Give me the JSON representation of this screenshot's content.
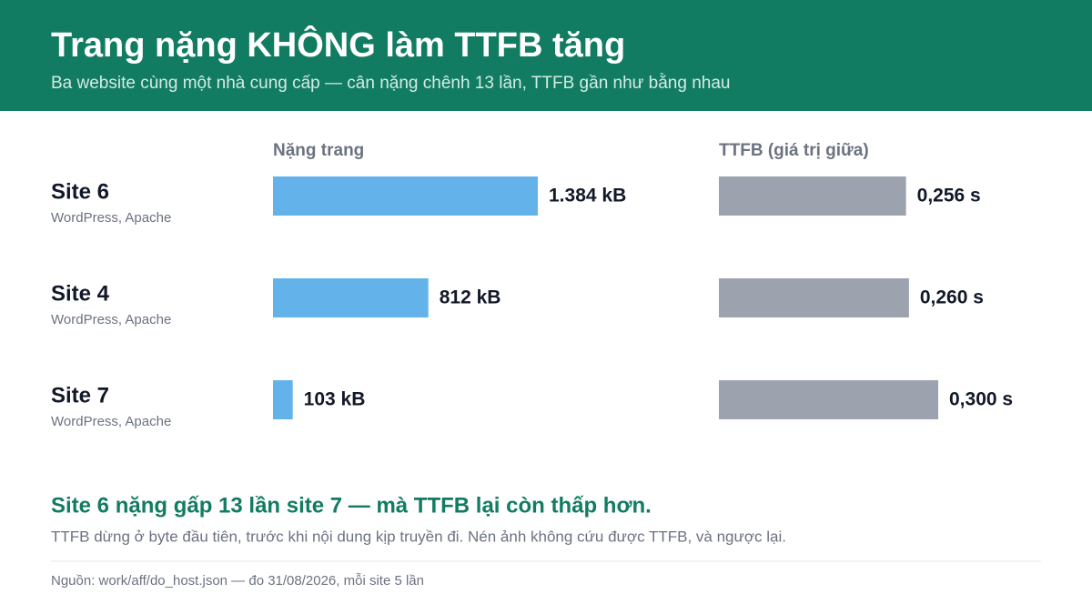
{
  "header": {
    "title": "Trang nặng KHÔNG làm TTFB tăng",
    "subtitle": "Ba website cùng một nhà cung cấp — cân nặng chênh 13 lần, TTFB gần như bằng nhau"
  },
  "rows": [
    {
      "stack": "WordPress, Apache"
    },
    {
      "stack": "WordPress, Apache"
    },
    {
      "stack": "WordPress, Apache"
    }
  ],
  "chart_data": [
    {
      "type": "bar",
      "orientation": "horizontal",
      "title": "Nặng trang",
      "categories": [
        "Site 6",
        "Site 4",
        "Site 7"
      ],
      "values": [
        1384,
        812,
        103
      ],
      "value_labels": [
        "1.384 kB",
        "812 kB",
        "103 kB"
      ],
      "color": "#63b3ea"
    },
    {
      "type": "bar",
      "orientation": "horizontal",
      "title": "TTFB (giá trị giữa)",
      "values": [
        0.256,
        0.26,
        0.3
      ],
      "value_labels": [
        "0,256 s",
        "0,260 s",
        "0,300 s"
      ],
      "color": "#9ca3af"
    }
  ],
  "conclusion": {
    "headline": "Site 6 nặng gấp 13 lần site 7 — mà TTFB lại còn thấp hơn.",
    "note": "TTFB dừng ở byte đầu tiên, trước khi nội dung kịp truyền đi. Nén ảnh không cứu được TTFB, và ngược lại."
  },
  "source": "Nguồn: work/aff/do_host.json — đo 31/08/2026, mỗi site 5 lần"
}
